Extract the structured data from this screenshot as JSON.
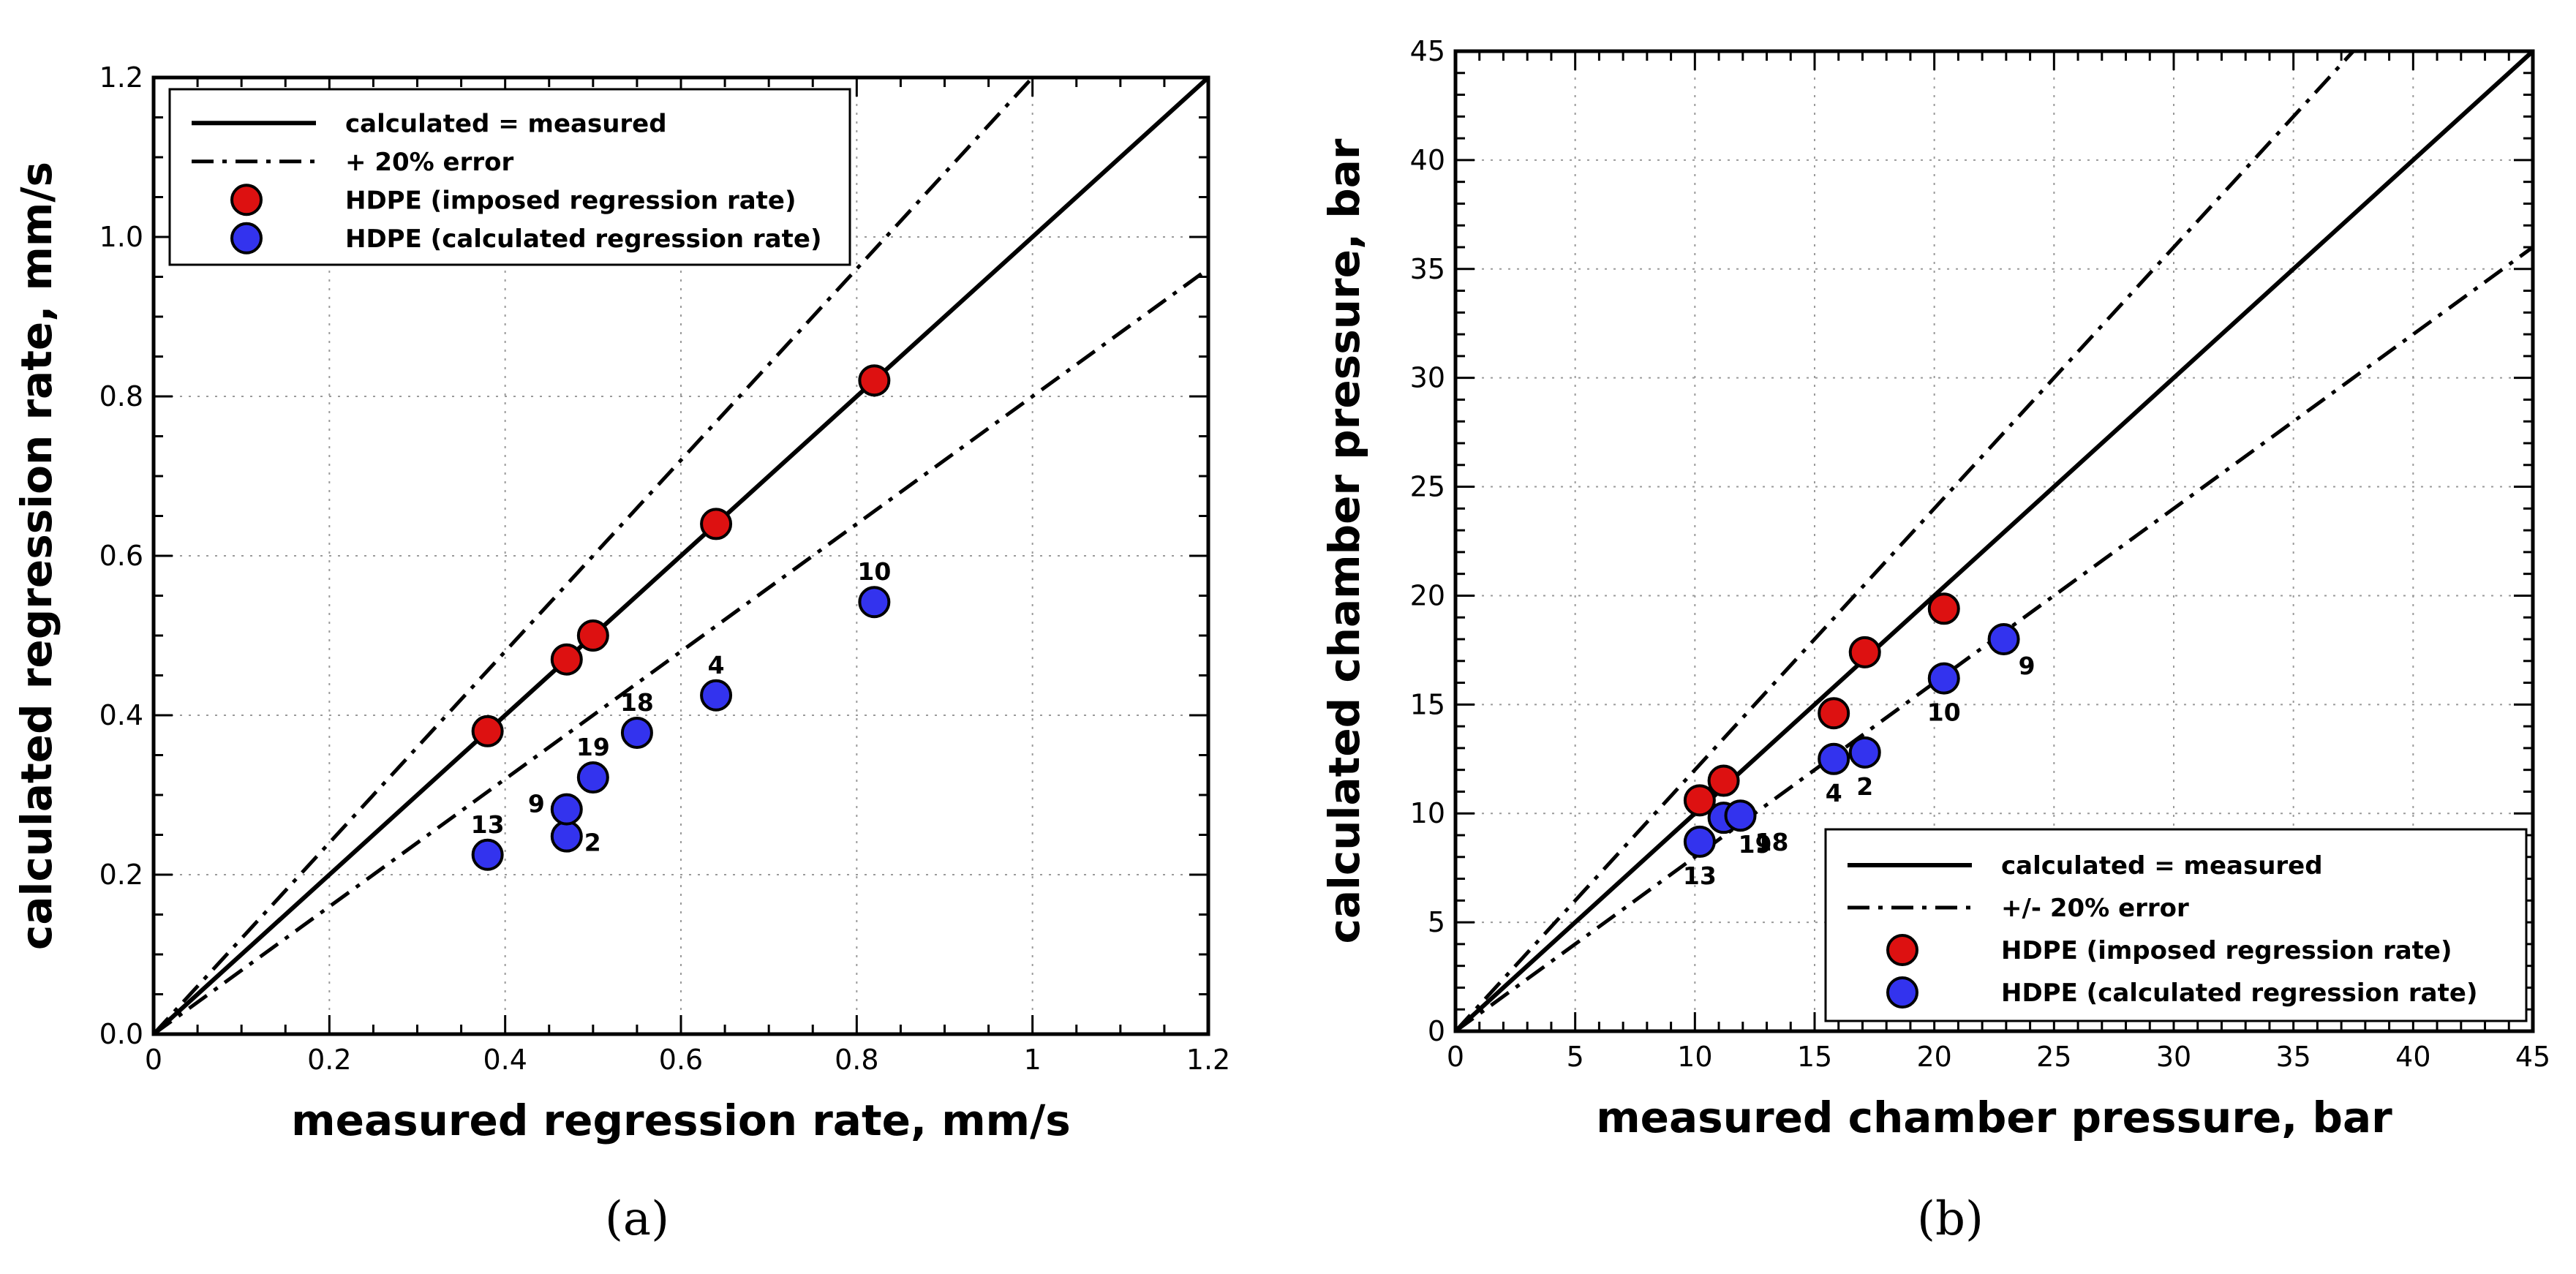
{
  "chart_data": [
    {
      "type": "scatter",
      "caption": "(a)",
      "xlabel": "measured regression rate, mm/s",
      "ylabel": "calculated regression rate, mm/s",
      "xlim": [
        0,
        1.2
      ],
      "ylim": [
        0,
        1.2
      ],
      "xticks": [
        0,
        0.2,
        0.4,
        0.6,
        0.8,
        1,
        1.2
      ],
      "xtick_labels": [
        "0",
        "0.2",
        "0.4",
        "0.6",
        "0.8",
        "1",
        "1.2"
      ],
      "yticks": [
        0,
        0.2,
        0.4,
        0.6,
        0.8,
        1.0,
        1.2
      ],
      "ytick_labels": [
        "0.0",
        "0.2",
        "0.4",
        "0.6",
        "0.8",
        "1.0",
        "1.2"
      ],
      "minor_step": 0.05,
      "grid": true,
      "legend_position": "top-left",
      "reference_lines": [
        {
          "name": "calculated = measured",
          "slope": 1.0,
          "style": "solid"
        },
        {
          "name": "+ 20% error",
          "slope": 1.2,
          "style": "dashdot"
        },
        {
          "name": "- 20% error",
          "slope": 0.8,
          "style": "dashdot"
        }
      ],
      "legend": [
        {
          "label": "calculated = measured",
          "kind": "solid"
        },
        {
          "label": "+ 20% error",
          "kind": "dashdot"
        },
        {
          "label": "HDPE (imposed regression rate)",
          "kind": "marker",
          "color": "#dd1111"
        },
        {
          "label": "HDPE (calculated regression rate)",
          "kind": "marker",
          "color": "#3333ee"
        }
      ],
      "series": [
        {
          "name": "HDPE (imposed regression rate)",
          "color": "#dd1111",
          "x": [
            0.38,
            0.47,
            0.5,
            0.64,
            0.82
          ],
          "y": [
            0.38,
            0.47,
            0.5,
            0.64,
            0.82
          ]
        },
        {
          "name": "HDPE (calculated regression rate)",
          "color": "#3333ee",
          "x": [
            0.38,
            0.47,
            0.47,
            0.5,
            0.55,
            0.64,
            0.82
          ],
          "y": [
            0.225,
            0.248,
            0.282,
            0.322,
            0.378,
            0.425,
            0.542
          ],
          "labels": [
            "13",
            "2",
            "9",
            "19",
            "18",
            "4",
            "10"
          ],
          "label_pos": [
            "above",
            "right",
            "left",
            "above",
            "above",
            "above",
            "above"
          ]
        }
      ]
    },
    {
      "type": "scatter",
      "caption": "(b)",
      "xlabel": "measured chamber pressure, bar",
      "ylabel": "calculated chamber pressure, bar",
      "xlim": [
        0,
        45
      ],
      "ylim": [
        0,
        45
      ],
      "xticks": [
        0,
        5,
        10,
        15,
        20,
        25,
        30,
        35,
        40,
        45
      ],
      "xtick_labels": [
        "0",
        "5",
        "10",
        "15",
        "20",
        "25",
        "30",
        "35",
        "40",
        "45"
      ],
      "yticks": [
        0,
        5,
        10,
        15,
        20,
        25,
        30,
        35,
        40,
        45
      ],
      "ytick_labels": [
        "0",
        "5",
        "10",
        "15",
        "20",
        "25",
        "30",
        "35",
        "40",
        "45"
      ],
      "minor_step": 1,
      "grid": true,
      "legend_position": "bottom-right",
      "reference_lines": [
        {
          "name": "calculated = measured",
          "slope": 1.0,
          "style": "solid"
        },
        {
          "name": "+ 20% error",
          "slope": 1.2,
          "style": "dashdot"
        },
        {
          "name": "- 20% error",
          "slope": 0.8,
          "style": "dashdot"
        }
      ],
      "legend": [
        {
          "label": "calculated = measured",
          "kind": "solid"
        },
        {
          "label": "+/- 20% error",
          "kind": "dashdot"
        },
        {
          "label": "HDPE (imposed regression rate)",
          "kind": "marker",
          "color": "#dd1111"
        },
        {
          "label": "HDPE (calculated regression rate)",
          "kind": "marker",
          "color": "#3333ee"
        }
      ],
      "series": [
        {
          "name": "HDPE (imposed regression rate)",
          "color": "#dd1111",
          "x": [
            10.2,
            11.2,
            15.8,
            17.1,
            20.4
          ],
          "y": [
            10.6,
            11.5,
            14.6,
            17.4,
            19.4
          ]
        },
        {
          "name": "HDPE (calculated regression rate)",
          "color": "#3333ee",
          "x": [
            10.2,
            11.2,
            11.9,
            15.8,
            17.1,
            20.4,
            22.9
          ],
          "y": [
            8.7,
            9.8,
            9.9,
            12.5,
            12.8,
            16.2,
            18.0
          ],
          "labels": [
            "13",
            "19",
            "18",
            "4",
            "2",
            "10",
            "9"
          ],
          "label_pos": [
            "below",
            "below-right",
            "below-right",
            "below",
            "below",
            "below",
            "below-right"
          ]
        }
      ]
    }
  ]
}
